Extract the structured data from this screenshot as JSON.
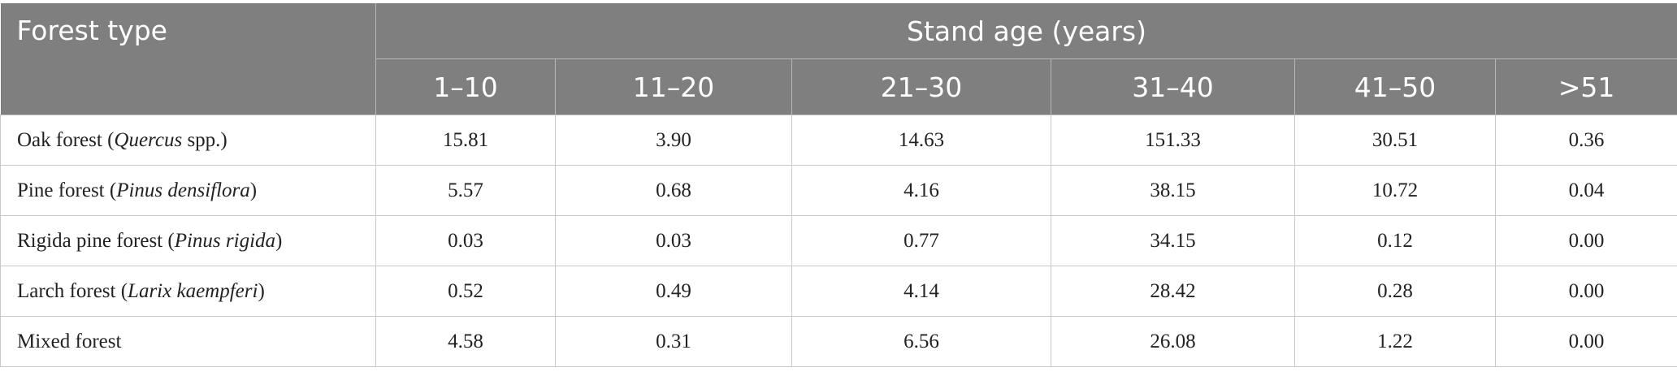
{
  "table": {
    "header": {
      "first": "Forest type",
      "group": "Stand age (years)",
      "columns": [
        "1–10",
        "11–20",
        "21–30",
        "31–40",
        "41–50",
        ">51"
      ]
    },
    "rows": [
      {
        "label": {
          "prefix": "Oak forest (",
          "latin": "Quercus",
          "suffix": " spp.)"
        },
        "values": [
          "15.81",
          "3.90",
          "14.63",
          "151.33",
          "30.51",
          "0.36"
        ]
      },
      {
        "label": {
          "prefix": "Pine forest (",
          "latin": "Pinus densiflora",
          "suffix": ")"
        },
        "values": [
          "5.57",
          "0.68",
          "4.16",
          "38.15",
          "10.72",
          "0.04"
        ]
      },
      {
        "label": {
          "prefix": "Rigida pine forest (",
          "latin": "Pinus rigida",
          "suffix": ")"
        },
        "values": [
          "0.03",
          "0.03",
          "0.77",
          "34.15",
          "0.12",
          "0.00"
        ]
      },
      {
        "label": {
          "prefix": "Larch forest (",
          "latin": "Larix kaempferi",
          "suffix": ")"
        },
        "values": [
          "0.52",
          "0.49",
          "4.14",
          "28.42",
          "0.28",
          "0.00"
        ]
      },
      {
        "label": {
          "prefix": "Mixed forest"
        },
        "values": [
          "4.58",
          "0.31",
          "6.56",
          "26.08",
          "1.22",
          "0.00"
        ]
      }
    ]
  }
}
